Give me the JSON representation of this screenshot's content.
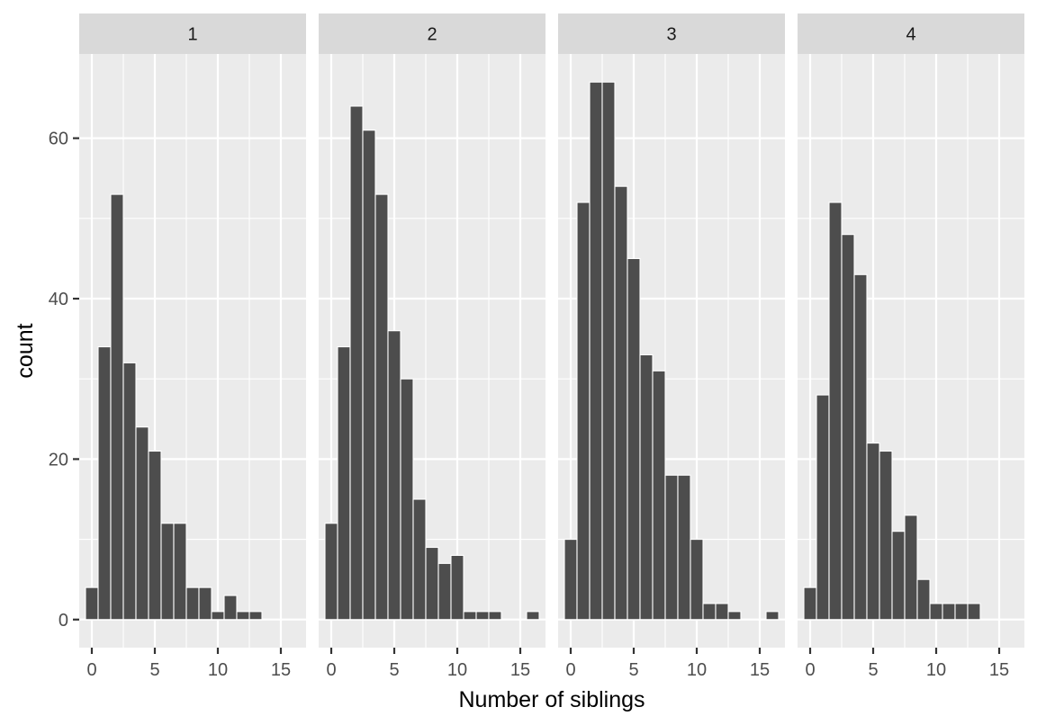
{
  "chart_data": {
    "type": "bar",
    "subtype": "faceted-histogram",
    "xlabel": "Number of siblings",
    "ylabel": "count",
    "xlim": [
      -1,
      17
    ],
    "ylim": [
      -3.5,
      70.5
    ],
    "x_ticks": [
      0,
      5,
      10,
      15
    ],
    "x_tick_labels": [
      "0",
      "5",
      "10",
      "15"
    ],
    "y_ticks": [
      0,
      20,
      40,
      60
    ],
    "y_tick_labels": [
      "0",
      "20",
      "40",
      "60"
    ],
    "bin_width": 1,
    "bin_centers": [
      0,
      1,
      2,
      3,
      4,
      5,
      6,
      7,
      8,
      9,
      10,
      11,
      12,
      13,
      14,
      15,
      16
    ],
    "grid": true,
    "colors": {
      "bar": "#4d4d4d",
      "panel": "#ebebeb",
      "strip": "#d9d9d9",
      "grid": "#ffffff"
    },
    "facets": [
      {
        "label": "1",
        "counts": [
          4,
          34,
          53,
          32,
          24,
          21,
          12,
          12,
          4,
          4,
          1,
          3,
          1,
          1,
          0,
          0,
          0
        ]
      },
      {
        "label": "2",
        "counts": [
          12,
          34,
          64,
          61,
          53,
          36,
          30,
          15,
          9,
          7,
          8,
          1,
          1,
          1,
          0,
          0,
          1
        ]
      },
      {
        "label": "3",
        "counts": [
          10,
          52,
          67,
          67,
          54,
          45,
          33,
          31,
          18,
          18,
          10,
          2,
          2,
          1,
          0,
          0,
          1
        ]
      },
      {
        "label": "4",
        "counts": [
          4,
          28,
          52,
          48,
          43,
          22,
          21,
          11,
          13,
          5,
          2,
          2,
          2,
          2,
          0,
          0,
          0
        ]
      }
    ]
  }
}
